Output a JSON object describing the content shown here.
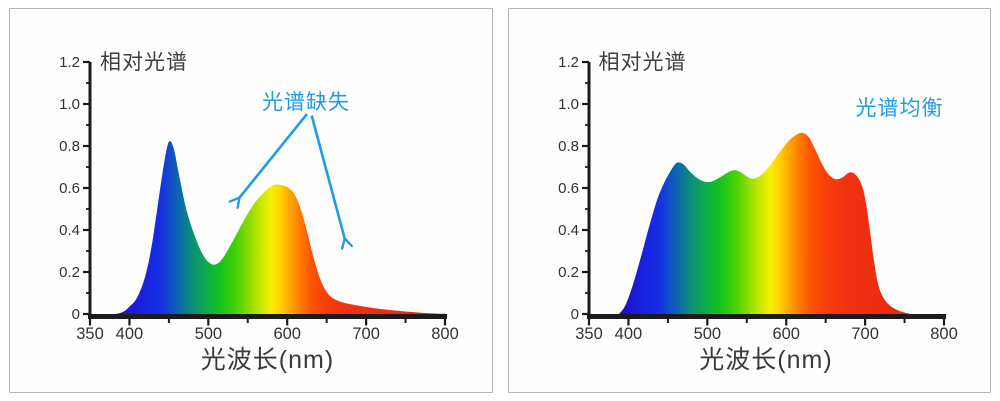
{
  "colors": {
    "annotation_blue": "#1f9ce4",
    "axis": "#1b1b1b",
    "tick_label": "#333333",
    "title_text": "#3f3f3f",
    "panel_border": "#b6b6b6",
    "panel_bg": "#fefefe"
  },
  "chart_data": [
    {
      "type": "area",
      "title": "相对光谱",
      "xlabel": "光波长(nm)",
      "ylabel": "",
      "annotation": "光谱缺失",
      "xlim": [
        350,
        800
      ],
      "ylim": [
        0,
        1.2
      ],
      "x_ticks_labeled": [
        350,
        400,
        500,
        600,
        700,
        800
      ],
      "x_tick_labels": [
        "350",
        "400",
        "500",
        "600",
        "700",
        "800"
      ],
      "x_ticks_minor": [
        450,
        550,
        650,
        750
      ],
      "y_ticks_labeled": [
        0,
        0.2,
        0.4,
        0.6,
        0.8,
        1.0,
        1.2
      ],
      "y_tick_labels": [
        "0",
        "0.2",
        "0.4",
        "0.6",
        "0.8",
        "1.0",
        "1.2"
      ],
      "y_ticks_minor": [
        0.1,
        0.3,
        0.5,
        0.7,
        0.9,
        1.1
      ],
      "grid": false,
      "legend": "none",
      "series": [
        {
          "name": "相对光谱",
          "points": [
            [
              383,
              0
            ],
            [
              392,
              0.01
            ],
            [
              400,
              0.035
            ],
            [
              410,
              0.08
            ],
            [
              420,
              0.18
            ],
            [
              428,
              0.32
            ],
            [
              436,
              0.52
            ],
            [
              444,
              0.72
            ],
            [
              450,
              0.82
            ],
            [
              456,
              0.79
            ],
            [
              463,
              0.66
            ],
            [
              472,
              0.5
            ],
            [
              482,
              0.38
            ],
            [
              492,
              0.29
            ],
            [
              500,
              0.248
            ],
            [
              507,
              0.235
            ],
            [
              515,
              0.25
            ],
            [
              524,
              0.3
            ],
            [
              535,
              0.375
            ],
            [
              548,
              0.465
            ],
            [
              560,
              0.535
            ],
            [
              572,
              0.585
            ],
            [
              582,
              0.613
            ],
            [
              592,
              0.615
            ],
            [
              602,
              0.6
            ],
            [
              610,
              0.565
            ],
            [
              618,
              0.49
            ],
            [
              626,
              0.38
            ],
            [
              634,
              0.26
            ],
            [
              642,
              0.165
            ],
            [
              650,
              0.105
            ],
            [
              658,
              0.075
            ],
            [
              668,
              0.058
            ],
            [
              680,
              0.047
            ],
            [
              695,
              0.037
            ],
            [
              710,
              0.028
            ],
            [
              730,
              0.019
            ],
            [
              750,
              0.012
            ],
            [
              770,
              0.006
            ],
            [
              790,
              0.002
            ],
            [
              800,
              0.001
            ]
          ]
        }
      ],
      "annotation_arrows": [
        {
          "from": [
            625,
            0.952
          ],
          "to": [
            539,
            0.552
          ]
        },
        {
          "from": [
            631,
            0.945
          ],
          "to": [
            673,
            0.357
          ]
        }
      ],
      "fill_gradient": [
        {
          "nm": 383,
          "color": "#2408bc"
        },
        {
          "nm": 400,
          "color": "#1b18d8"
        },
        {
          "nm": 440,
          "color": "#1530e4"
        },
        {
          "nm": 462,
          "color": "#0d66b0"
        },
        {
          "nm": 478,
          "color": "#0b8c78"
        },
        {
          "nm": 495,
          "color": "#0ca853"
        },
        {
          "nm": 515,
          "color": "#12c31d"
        },
        {
          "nm": 535,
          "color": "#46d104"
        },
        {
          "nm": 552,
          "color": "#8cdd00"
        },
        {
          "nm": 568,
          "color": "#cbe900"
        },
        {
          "nm": 580,
          "color": "#f8ef00"
        },
        {
          "nm": 592,
          "color": "#ffcf00"
        },
        {
          "nm": 604,
          "color": "#ffa400"
        },
        {
          "nm": 616,
          "color": "#ff7d00"
        },
        {
          "nm": 630,
          "color": "#fc5502"
        },
        {
          "nm": 650,
          "color": "#f63e0a"
        },
        {
          "nm": 680,
          "color": "#f03010"
        },
        {
          "nm": 760,
          "color": "#ea2a12"
        }
      ]
    },
    {
      "type": "area",
      "title": "相对光谱",
      "xlabel": "光波长(nm)",
      "ylabel": "",
      "annotation": "光谱均衡",
      "xlim": [
        350,
        800
      ],
      "ylim": [
        0,
        1.2
      ],
      "x_ticks_labeled": [
        350,
        400,
        500,
        600,
        700,
        800
      ],
      "x_tick_labels": [
        "350",
        "400",
        "500",
        "600",
        "700",
        "800"
      ],
      "x_ticks_minor": [
        450,
        550,
        650,
        750
      ],
      "y_ticks_labeled": [
        0,
        0.2,
        0.4,
        0.6,
        0.8,
        1.0,
        1.2
      ],
      "y_tick_labels": [
        "0",
        "0.2",
        "0.4",
        "0.6",
        "0.8",
        "1.0",
        "1.2"
      ],
      "y_ticks_minor": [
        0.1,
        0.3,
        0.5,
        0.7,
        0.9,
        1.1
      ],
      "grid": false,
      "legend": "none",
      "series": [
        {
          "name": "相对光谱",
          "points": [
            [
              388,
              0
            ],
            [
              396,
              0.04
            ],
            [
              404,
              0.12
            ],
            [
              412,
              0.22
            ],
            [
              420,
              0.33
            ],
            [
              428,
              0.44
            ],
            [
              436,
              0.54
            ],
            [
              444,
              0.615
            ],
            [
              452,
              0.672
            ],
            [
              458,
              0.708
            ],
            [
              463,
              0.722
            ],
            [
              470,
              0.712
            ],
            [
              478,
              0.678
            ],
            [
              487,
              0.648
            ],
            [
              495,
              0.632
            ],
            [
              502,
              0.628
            ],
            [
              510,
              0.638
            ],
            [
              519,
              0.658
            ],
            [
              528,
              0.678
            ],
            [
              534,
              0.685
            ],
            [
              541,
              0.678
            ],
            [
              549,
              0.658
            ],
            [
              556,
              0.645
            ],
            [
              562,
              0.648
            ],
            [
              570,
              0.668
            ],
            [
              580,
              0.71
            ],
            [
              592,
              0.772
            ],
            [
              604,
              0.828
            ],
            [
              614,
              0.856
            ],
            [
              621,
              0.862
            ],
            [
              628,
              0.845
            ],
            [
              636,
              0.79
            ],
            [
              644,
              0.725
            ],
            [
              652,
              0.672
            ],
            [
              660,
              0.645
            ],
            [
              666,
              0.642
            ],
            [
              673,
              0.655
            ],
            [
              679,
              0.672
            ],
            [
              684,
              0.673
            ],
            [
              690,
              0.655
            ],
            [
              696,
              0.61
            ],
            [
              701,
              0.53
            ],
            [
              706,
              0.4
            ],
            [
              711,
              0.26
            ],
            [
              716,
              0.15
            ],
            [
              722,
              0.085
            ],
            [
              730,
              0.045
            ],
            [
              740,
              0.02
            ],
            [
              750,
              0.007
            ],
            [
              757,
              0.001
            ]
          ]
        }
      ],
      "annotation_arrows": [],
      "fill_gradient": [
        {
          "nm": 388,
          "color": "#2408bc"
        },
        {
          "nm": 405,
          "color": "#1b18d8"
        },
        {
          "nm": 440,
          "color": "#1530e4"
        },
        {
          "nm": 462,
          "color": "#0d66b0"
        },
        {
          "nm": 478,
          "color": "#0b8c78"
        },
        {
          "nm": 495,
          "color": "#0ca853"
        },
        {
          "nm": 515,
          "color": "#12c31d"
        },
        {
          "nm": 535,
          "color": "#46d104"
        },
        {
          "nm": 552,
          "color": "#8cdd00"
        },
        {
          "nm": 568,
          "color": "#cbe900"
        },
        {
          "nm": 580,
          "color": "#f8ef00"
        },
        {
          "nm": 592,
          "color": "#ffcf00"
        },
        {
          "nm": 604,
          "color": "#ffa400"
        },
        {
          "nm": 616,
          "color": "#ff7d00"
        },
        {
          "nm": 630,
          "color": "#fc5502"
        },
        {
          "nm": 650,
          "color": "#f63e0a"
        },
        {
          "nm": 680,
          "color": "#f03010"
        },
        {
          "nm": 757,
          "color": "#e92912"
        }
      ]
    }
  ]
}
